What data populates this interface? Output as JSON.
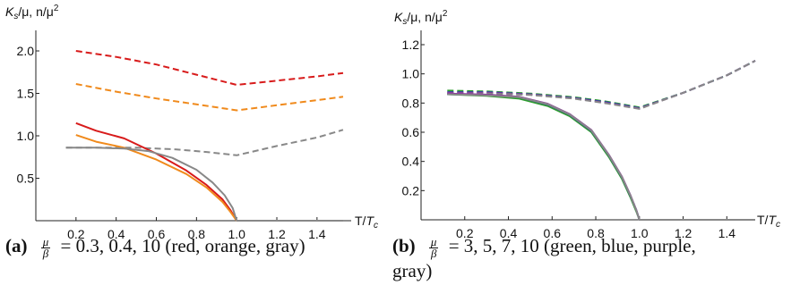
{
  "chart_data": [
    {
      "type": "line",
      "ylabel": "K_s/μ, n/μ²",
      "xlabel": "T/T_c",
      "xticks": [
        "0.2",
        "0.4",
        "0.6",
        "0.8",
        "1.0",
        "1.2",
        "1.4"
      ],
      "yticks": [
        "0.5",
        "1.0",
        "1.5",
        "2.0"
      ],
      "xlim": [
        0,
        1.55
      ],
      "ylim": [
        0,
        2.1
      ],
      "grid": false,
      "series": [
        {
          "color": "#d81b1b",
          "dash": true,
          "x": [
            0.2,
            0.4,
            0.6,
            0.8,
            1.0,
            1.2,
            1.4,
            1.53
          ],
          "y": [
            2.0,
            1.93,
            1.84,
            1.72,
            1.6,
            1.65,
            1.7,
            1.74
          ]
        },
        {
          "color": "#f08a1c",
          "dash": true,
          "x": [
            0.2,
            0.4,
            0.6,
            0.8,
            1.0,
            1.2,
            1.4,
            1.53
          ],
          "y": [
            1.61,
            1.52,
            1.44,
            1.37,
            1.3,
            1.36,
            1.42,
            1.46
          ]
        },
        {
          "color": "#888888",
          "dash": true,
          "x": [
            0.15,
            0.3,
            0.5,
            0.7,
            0.85,
            1.0,
            1.2,
            1.4,
            1.53
          ],
          "y": [
            0.86,
            0.86,
            0.86,
            0.84,
            0.81,
            0.77,
            0.88,
            0.98,
            1.07
          ]
        },
        {
          "color": "#d81b1b",
          "dash": false,
          "x": [
            0.2,
            0.3,
            0.44,
            0.6,
            0.75,
            0.85,
            0.93,
            0.97,
            1.0,
            1.53
          ],
          "y": [
            1.15,
            1.06,
            0.97,
            0.79,
            0.59,
            0.42,
            0.25,
            0.12,
            0.0,
            0.0
          ]
        },
        {
          "color": "#f08a1c",
          "dash": false,
          "x": [
            0.2,
            0.3,
            0.44,
            0.6,
            0.75,
            0.85,
            0.93,
            0.97,
            1.0,
            1.53
          ],
          "y": [
            1.01,
            0.93,
            0.86,
            0.72,
            0.55,
            0.39,
            0.22,
            0.1,
            0.0,
            0.0
          ]
        },
        {
          "color": "#888888",
          "dash": false,
          "x": [
            0.15,
            0.3,
            0.44,
            0.56,
            0.68,
            0.8,
            0.88,
            0.94,
            0.98,
            1.0,
            1.53
          ],
          "y": [
            0.86,
            0.86,
            0.85,
            0.82,
            0.74,
            0.6,
            0.45,
            0.3,
            0.15,
            0.0,
            0.0
          ]
        }
      ]
    },
    {
      "type": "line",
      "ylabel": "K_s/μ, n/μ²",
      "xlabel": "T/T_c",
      "xticks": [
        "0.2",
        "0.4",
        "0.6",
        "0.8",
        "1.0",
        "1.2",
        "1.4"
      ],
      "yticks": [
        "0.2",
        "0.4",
        "0.6",
        "0.8",
        "1.0",
        "1.2"
      ],
      "xlim": [
        0,
        1.55
      ],
      "ylim": [
        0,
        1.28
      ],
      "grid": false,
      "series": [
        {
          "color": "#2e9e2e",
          "dash": true,
          "x": [
            0.12,
            0.3,
            0.5,
            0.7,
            0.85,
            1.0,
            1.2,
            1.4,
            1.53
          ],
          "y": [
            0.885,
            0.88,
            0.865,
            0.84,
            0.81,
            0.77,
            0.87,
            0.99,
            1.09
          ]
        },
        {
          "color": "#2f3fb0",
          "dash": true,
          "x": [
            0.12,
            0.3,
            0.5,
            0.7,
            0.85,
            1.0,
            1.2,
            1.4,
            1.53
          ],
          "y": [
            0.875,
            0.875,
            0.86,
            0.835,
            0.805,
            0.765,
            0.87,
            0.99,
            1.09
          ]
        },
        {
          "color": "#8a2e9e",
          "dash": true,
          "x": [
            0.12,
            0.3,
            0.5,
            0.7,
            0.85,
            1.0,
            1.2,
            1.4,
            1.53
          ],
          "y": [
            0.87,
            0.87,
            0.858,
            0.832,
            0.8,
            0.762,
            0.87,
            0.99,
            1.09
          ]
        },
        {
          "color": "#888888",
          "dash": true,
          "x": [
            0.12,
            0.3,
            0.5,
            0.7,
            0.85,
            1.0,
            1.2,
            1.4,
            1.53
          ],
          "y": [
            0.865,
            0.865,
            0.855,
            0.83,
            0.798,
            0.76,
            0.87,
            0.99,
            1.09
          ]
        },
        {
          "color": "#2e9e2e",
          "dash": false,
          "x": [
            0.12,
            0.3,
            0.45,
            0.58,
            0.68,
            0.78,
            0.86,
            0.92,
            0.96,
            0.985,
            1.0,
            1.53
          ],
          "y": [
            0.86,
            0.85,
            0.83,
            0.78,
            0.71,
            0.6,
            0.43,
            0.28,
            0.15,
            0.06,
            0.0,
            0.0
          ]
        },
        {
          "color": "#2f3fb0",
          "dash": false,
          "x": [
            0.12,
            0.3,
            0.45,
            0.58,
            0.68,
            0.78,
            0.86,
            0.92,
            0.96,
            0.985,
            1.0,
            1.53
          ],
          "y": [
            0.86,
            0.855,
            0.84,
            0.79,
            0.72,
            0.61,
            0.44,
            0.29,
            0.16,
            0.07,
            0.0,
            0.0
          ]
        },
        {
          "color": "#8a2e9e",
          "dash": false,
          "x": [
            0.12,
            0.3,
            0.45,
            0.58,
            0.68,
            0.78,
            0.86,
            0.92,
            0.96,
            0.985,
            1.0,
            1.53
          ],
          "y": [
            0.865,
            0.858,
            0.843,
            0.795,
            0.725,
            0.615,
            0.445,
            0.295,
            0.165,
            0.07,
            0.0,
            0.0
          ]
        },
        {
          "color": "#888888",
          "dash": false,
          "x": [
            0.12,
            0.3,
            0.45,
            0.58,
            0.68,
            0.78,
            0.86,
            0.92,
            0.96,
            0.985,
            1.0,
            1.53
          ],
          "y": [
            0.86,
            0.853,
            0.84,
            0.792,
            0.722,
            0.612,
            0.442,
            0.292,
            0.162,
            0.068,
            0.0,
            0.0
          ]
        }
      ]
    }
  ],
  "captions": [
    {
      "tag": "(a)",
      "frac_num": "μ",
      "frac_den": "β",
      "text": "= 0.3, 0.4, 10 (red, orange, gray)"
    },
    {
      "tag": "(b)",
      "frac_num": "μ",
      "frac_den": "β",
      "text": "= 3, 5, 7, 10 (green, blue, purple,",
      "text2": "gray)"
    }
  ]
}
